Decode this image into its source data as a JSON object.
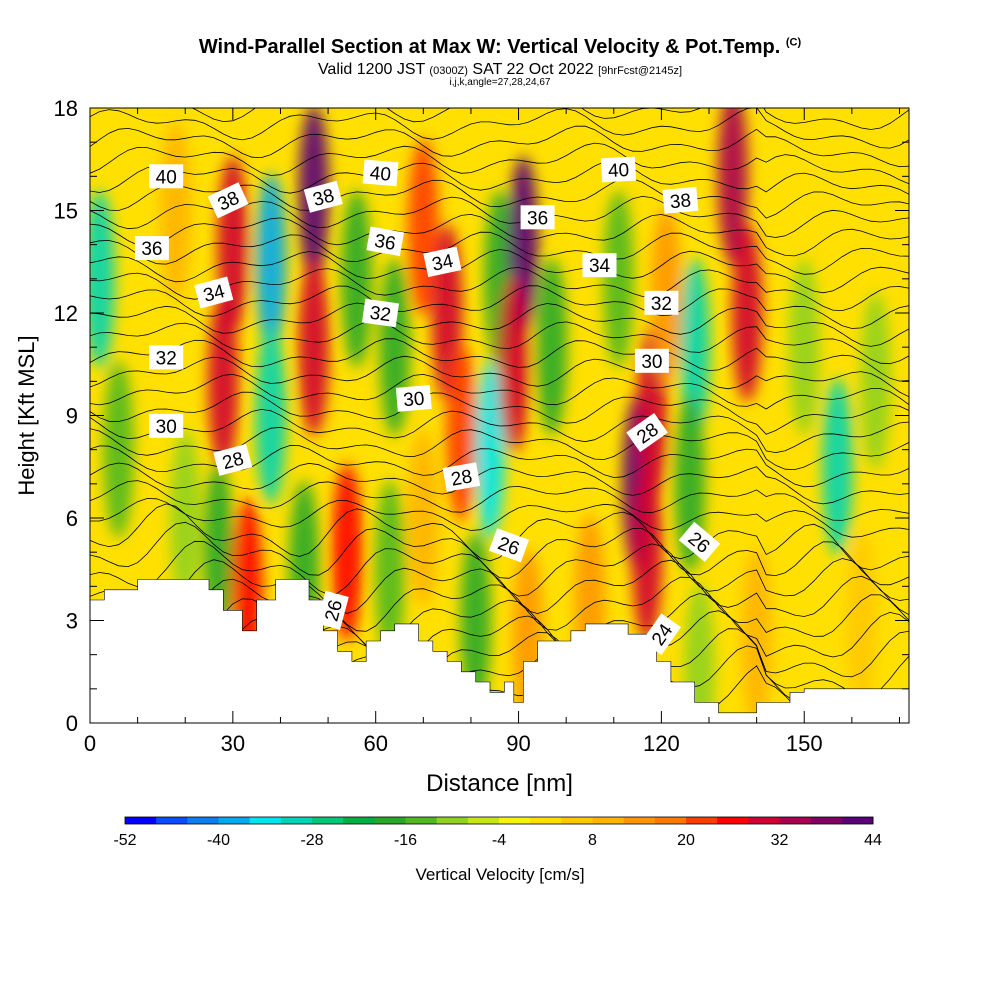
{
  "header": {
    "title": "Wind-Parallel Section at Max W: Vertical Velocity & Pot.Temp.",
    "title_tag": "(C)",
    "valid_prefix": "Valid 1200 JST",
    "valid_utc": "(0300Z)",
    "valid_date": "SAT 22 Oct 2022",
    "forecast": "[9hrFcst@2145z]",
    "indices": "i,j,k,angle=27,28,24,67"
  },
  "chart_data": {
    "type": "heatmap",
    "xlabel": "Distance [nm]",
    "ylabel": "Height [Kft MSL]",
    "xlim": [
      0,
      172
    ],
    "ylim": [
      0,
      18
    ],
    "x_ticks": [
      "0",
      "30",
      "60",
      "90",
      "120",
      "150"
    ],
    "y_ticks": [
      "0",
      "3",
      "6",
      "9",
      "12",
      "15",
      "18"
    ],
    "x_tick_values": [
      0,
      30,
      60,
      90,
      120,
      150
    ],
    "y_tick_values": [
      0,
      3,
      6,
      9,
      12,
      15,
      18
    ],
    "colorbar": {
      "label": "Vertical Velocity [cm/s]",
      "tick_labels": [
        "-52",
        "-40",
        "-28",
        "-16",
        "-4",
        "8",
        "20",
        "32",
        "44"
      ],
      "tick_values": [
        -52,
        -40,
        -28,
        -16,
        -4,
        8,
        20,
        32,
        44
      ],
      "min": -52,
      "step": 4,
      "colors": [
        "#0000ff",
        "#0a4cff",
        "#0b7ff2",
        "#00aaee",
        "#00e6f0",
        "#00d4b4",
        "#00c878",
        "#00b042",
        "#28a828",
        "#50b820",
        "#90d21e",
        "#c8e614",
        "#f5f50a",
        "#ffe000",
        "#ffc800",
        "#ffb400",
        "#ff9600",
        "#ff7800",
        "#ff3c00",
        "#ff0000",
        "#d20032",
        "#aa0050",
        "#820064",
        "#5a0078"
      ]
    },
    "velocity_anomalies": [
      {
        "x": 30,
        "z": 14,
        "value": 30
      },
      {
        "x": 28,
        "z": 10,
        "value": 28
      },
      {
        "x": 38,
        "z": 13.5,
        "value": -40
      },
      {
        "x": 38,
        "z": 9,
        "value": -30
      },
      {
        "x": 47,
        "z": 15.5,
        "value": 44
      },
      {
        "x": 47,
        "z": 11,
        "value": 30
      },
      {
        "x": 56,
        "z": 13,
        "value": -20
      },
      {
        "x": 64,
        "z": 11,
        "value": -18
      },
      {
        "x": 70,
        "z": 14.5,
        "value": 20
      },
      {
        "x": 75,
        "z": 12,
        "value": 30
      },
      {
        "x": 78,
        "z": 8.5,
        "value": 20
      },
      {
        "x": 84,
        "z": 8,
        "value": -34
      },
      {
        "x": 86,
        "z": 13,
        "value": -20
      },
      {
        "x": 91,
        "z": 14,
        "value": 44
      },
      {
        "x": 89,
        "z": 10.5,
        "value": 30
      },
      {
        "x": 97,
        "z": 11,
        "value": -18
      },
      {
        "x": 111,
        "z": 13,
        "value": -14
      },
      {
        "x": 115,
        "z": 7,
        "value": 44
      },
      {
        "x": 117,
        "z": 5,
        "value": 30
      },
      {
        "x": 118,
        "z": 9,
        "value": 28
      },
      {
        "x": 121,
        "z": 12.5,
        "value": 12
      },
      {
        "x": 127,
        "z": 11,
        "value": -30
      },
      {
        "x": 126,
        "z": 7,
        "value": -18
      },
      {
        "x": 135,
        "z": 16,
        "value": 32
      },
      {
        "x": 138,
        "z": 12,
        "value": 28
      },
      {
        "x": 150,
        "z": 11,
        "value": -12
      },
      {
        "x": 157,
        "z": 7.5,
        "value": -30
      },
      {
        "x": 165,
        "z": 10,
        "value": -12
      },
      {
        "x": 2,
        "z": 13,
        "value": -30
      },
      {
        "x": 6,
        "z": 8,
        "value": -14
      },
      {
        "x": 18,
        "z": 15,
        "value": 10
      },
      {
        "x": 20,
        "z": 6,
        "value": -12
      },
      {
        "x": 27,
        "z": 5,
        "value": -20
      },
      {
        "x": 33,
        "z": 4,
        "value": 26
      },
      {
        "x": 45,
        "z": 4.5,
        "value": -20
      },
      {
        "x": 54,
        "z": 5,
        "value": 24
      },
      {
        "x": 63,
        "z": 4.5,
        "value": -14
      },
      {
        "x": 70,
        "z": 6,
        "value": 10
      },
      {
        "x": 81,
        "z": 3,
        "value": -20
      },
      {
        "x": 92,
        "z": 2.5,
        "value": 12
      },
      {
        "x": 105,
        "z": 3.5,
        "value": 14
      },
      {
        "x": 128,
        "z": 1.5,
        "value": -10
      },
      {
        "x": 140,
        "z": 2.5,
        "value": 8
      },
      {
        "x": 162,
        "z": 3,
        "value": 4
      }
    ],
    "contour_labels": [
      {
        "text": "40",
        "x": 16,
        "z": 16.0,
        "angle": 0
      },
      {
        "text": "38",
        "x": 29,
        "z": 15.3,
        "angle": -25
      },
      {
        "text": "38",
        "x": 49,
        "z": 15.4,
        "angle": -15
      },
      {
        "text": "40",
        "x": 61,
        "z": 16.1,
        "angle": 5
      },
      {
        "text": "40",
        "x": 111,
        "z": 16.2,
        "angle": -3
      },
      {
        "text": "38",
        "x": 124,
        "z": 15.3,
        "angle": -5
      },
      {
        "text": "36",
        "x": 13,
        "z": 13.9,
        "angle": 0
      },
      {
        "text": "36",
        "x": 62,
        "z": 14.1,
        "angle": 10
      },
      {
        "text": "36",
        "x": 94,
        "z": 14.8,
        "angle": 0
      },
      {
        "text": "34",
        "x": 26,
        "z": 12.6,
        "angle": -15
      },
      {
        "text": "34",
        "x": 74,
        "z": 13.5,
        "angle": -12
      },
      {
        "text": "34",
        "x": 107,
        "z": 13.4,
        "angle": 0
      },
      {
        "text": "32",
        "x": 61,
        "z": 12.0,
        "angle": 8
      },
      {
        "text": "32",
        "x": 120,
        "z": 12.3,
        "angle": 0
      },
      {
        "text": "32",
        "x": 16,
        "z": 10.7,
        "angle": 0
      },
      {
        "text": "30",
        "x": 118,
        "z": 10.6,
        "angle": 0
      },
      {
        "text": "30",
        "x": 68,
        "z": 9.5,
        "angle": -5
      },
      {
        "text": "30",
        "x": 16,
        "z": 8.7,
        "angle": 0
      },
      {
        "text": "28",
        "x": 117,
        "z": 8.5,
        "angle": -35
      },
      {
        "text": "28",
        "x": 30,
        "z": 7.7,
        "angle": -15
      },
      {
        "text": "28",
        "x": 78,
        "z": 7.2,
        "angle": -10
      },
      {
        "text": "26",
        "x": 88,
        "z": 5.2,
        "angle": 20
      },
      {
        "text": "26",
        "x": 128,
        "z": 5.3,
        "angle": 40
      },
      {
        "text": "26",
        "x": 51,
        "z": 3.3,
        "angle": -75
      },
      {
        "text": "24",
        "x": 120,
        "z": 2.6,
        "angle": -55
      }
    ],
    "terrain": [
      [
        0,
        3.6
      ],
      [
        3,
        3.6
      ],
      [
        3,
        3.9
      ],
      [
        10,
        3.9
      ],
      [
        10,
        4.2
      ],
      [
        25,
        4.2
      ],
      [
        25,
        3.9
      ],
      [
        28,
        3.9
      ],
      [
        28,
        3.3
      ],
      [
        32,
        3.3
      ],
      [
        32,
        2.7
      ],
      [
        35,
        2.7
      ],
      [
        35,
        3.6
      ],
      [
        39,
        3.6
      ],
      [
        39,
        4.2
      ],
      [
        46,
        4.2
      ],
      [
        46,
        3.6
      ],
      [
        49,
        3.6
      ],
      [
        49,
        2.7
      ],
      [
        52,
        2.7
      ],
      [
        52,
        2.1
      ],
      [
        55,
        2.1
      ],
      [
        55,
        1.8
      ],
      [
        58,
        1.8
      ],
      [
        58,
        2.4
      ],
      [
        61,
        2.4
      ],
      [
        61,
        2.7
      ],
      [
        64,
        2.7
      ],
      [
        64,
        2.9
      ],
      [
        69,
        2.9
      ],
      [
        69,
        2.4
      ],
      [
        72,
        2.4
      ],
      [
        72,
        2.1
      ],
      [
        75,
        2.1
      ],
      [
        75,
        1.8
      ],
      [
        78,
        1.8
      ],
      [
        78,
        1.5
      ],
      [
        81,
        1.5
      ],
      [
        81,
        1.2
      ],
      [
        84,
        1.2
      ],
      [
        84,
        0.9
      ],
      [
        87,
        0.9
      ],
      [
        87,
        1.2
      ],
      [
        89,
        1.2
      ],
      [
        89,
        0.6
      ],
      [
        91,
        0.6
      ],
      [
        91,
        1.8
      ],
      [
        94,
        1.8
      ],
      [
        94,
        2.4
      ],
      [
        101,
        2.4
      ],
      [
        101,
        2.7
      ],
      [
        104,
        2.7
      ],
      [
        104,
        2.9
      ],
      [
        113,
        2.9
      ],
      [
        113,
        2.6
      ],
      [
        119,
        2.6
      ],
      [
        119,
        1.8
      ],
      [
        122,
        1.8
      ],
      [
        122,
        1.2
      ],
      [
        127,
        1.2
      ],
      [
        127,
        0.6
      ],
      [
        132,
        0.6
      ],
      [
        132,
        0.3
      ],
      [
        140,
        0.3
      ],
      [
        140,
        0.6
      ],
      [
        147,
        0.6
      ],
      [
        147,
        0.9
      ],
      [
        150,
        0.9
      ],
      [
        150,
        1.0
      ],
      [
        172,
        1.0
      ]
    ]
  }
}
